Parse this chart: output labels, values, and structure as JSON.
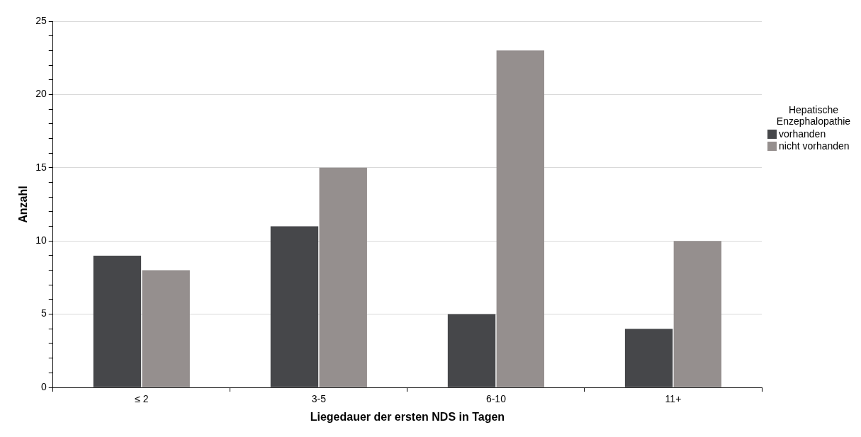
{
  "chart_data": {
    "type": "bar",
    "xlabel": "Liegedauer der ersten NDS in Tagen",
    "ylabel": "Anzahl",
    "legend_title": "Hepatische Enzephalopathie",
    "categories": [
      "≤ 2",
      "3-5",
      "6-10",
      "11+"
    ],
    "series": [
      {
        "name": "vorhanden",
        "color": "#46474a",
        "values": [
          9,
          11,
          5,
          4
        ]
      },
      {
        "name": "nicht vorhanden",
        "color": "#958f8e",
        "values": [
          8,
          15,
          23,
          10
        ]
      }
    ],
    "ylim": [
      0,
      25
    ],
    "yticks": [
      0,
      {
        "value": 1,
        "label": null
      },
      {
        "value": 2,
        "label": null
      },
      {
        "value": 3,
        "label": null
      },
      {
        "value": 4,
        "label": null
      },
      5,
      {
        "value": 6,
        "label": null
      },
      {
        "value": 7,
        "label": null
      },
      {
        "value": 8,
        "label": null
      },
      {
        "value": 9,
        "label": null
      },
      10,
      {
        "value": 11,
        "label": null
      },
      {
        "value": 12,
        "label": null
      },
      {
        "value": 13,
        "label": null
      },
      {
        "value": 14,
        "label": null
      },
      15,
      {
        "value": 16,
        "label": null
      },
      {
        "value": 17,
        "label": null
      },
      {
        "value": 18,
        "label": null
      },
      {
        "value": 19,
        "label": null
      },
      20,
      {
        "value": 21,
        "label": null
      },
      {
        "value": 22,
        "label": null
      },
      {
        "value": 23,
        "label": null
      },
      {
        "value": 24,
        "label": null
      },
      25
    ],
    "grid": "y",
    "legend": "right"
  }
}
